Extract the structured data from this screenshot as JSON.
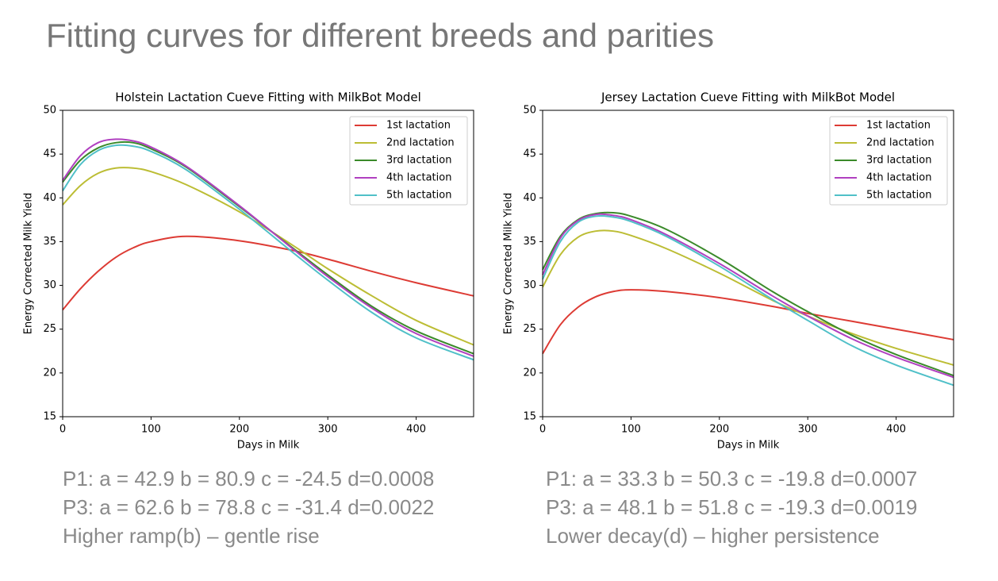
{
  "title": "Fitting curves for different breeds and parities",
  "chart_data": [
    {
      "type": "line",
      "title": "Holstein Lactation Cueve Fitting with MilkBot Model",
      "x_label": "Days in Milk",
      "y_label": "Energy Corrected Milk Yield",
      "x": [
        0,
        20,
        40,
        60,
        80,
        100,
        140,
        200,
        260,
        300,
        350,
        400,
        465
      ],
      "series": [
        {
          "name": "1st lactation",
          "color": "#dd3b34",
          "values": [
            27.2,
            29.6,
            31.6,
            33.2,
            34.3,
            35.0,
            35.6,
            35.1,
            34.0,
            33.0,
            31.6,
            30.3,
            28.8
          ]
        },
        {
          "name": "2nd lactation",
          "color": "#bcbd34",
          "values": [
            39.2,
            41.4,
            42.8,
            43.4,
            43.4,
            43.0,
            41.5,
            38.4,
            34.6,
            31.9,
            28.8,
            26.0,
            23.2
          ]
        },
        {
          "name": "3rd lactation",
          "color": "#3a8a2a",
          "values": [
            41.8,
            44.3,
            45.7,
            46.3,
            46.3,
            45.6,
            43.5,
            39.0,
            34.3,
            31.2,
            27.6,
            24.8,
            22.2
          ]
        },
        {
          "name": "4th lactation",
          "color": "#b040c0",
          "values": [
            42.0,
            44.8,
            46.3,
            46.7,
            46.5,
            45.8,
            43.6,
            39.1,
            34.2,
            31.0,
            27.4,
            24.5,
            21.9
          ]
        },
        {
          "name": "5th lactation",
          "color": "#50c0c8",
          "values": [
            40.8,
            43.8,
            45.4,
            46.0,
            45.9,
            45.3,
            43.2,
            38.7,
            33.8,
            30.6,
            26.9,
            24.0,
            21.5
          ]
        }
      ],
      "xlim": [
        0,
        465
      ],
      "ylim": [
        15,
        50
      ],
      "xticks": [
        0,
        100,
        200,
        300,
        400
      ],
      "yticks": [
        15,
        20,
        25,
        30,
        35,
        40,
        45,
        50
      ],
      "legend": "upper right",
      "grid": false
    },
    {
      "type": "line",
      "title": "Jersey Lactation Cueve Fitting with MilkBot Model",
      "x_label": "Days in Milk",
      "y_label": "Energy Corrected Milk Yield",
      "x": [
        0,
        20,
        40,
        60,
        80,
        100,
        140,
        200,
        260,
        300,
        350,
        400,
        465
      ],
      "series": [
        {
          "name": "1st lactation",
          "color": "#dd3b34",
          "values": [
            22.2,
            25.5,
            27.5,
            28.7,
            29.3,
            29.5,
            29.3,
            28.6,
            27.6,
            26.8,
            25.9,
            25.0,
            23.8
          ]
        },
        {
          "name": "2nd lactation",
          "color": "#bcbd34",
          "values": [
            29.8,
            33.5,
            35.5,
            36.2,
            36.2,
            35.7,
            34.2,
            31.4,
            28.3,
            26.5,
            24.5,
            22.8,
            20.9
          ]
        },
        {
          "name": "3rd lactation",
          "color": "#3a8a2a",
          "values": [
            31.8,
            35.6,
            37.5,
            38.2,
            38.3,
            37.9,
            36.4,
            33.1,
            29.3,
            27.0,
            24.3,
            22.1,
            19.7
          ]
        },
        {
          "name": "4th lactation",
          "color": "#b040c0",
          "values": [
            31.2,
            35.4,
            37.4,
            38.1,
            38.0,
            37.5,
            35.8,
            32.5,
            28.8,
            26.5,
            23.9,
            21.8,
            19.5
          ]
        },
        {
          "name": "5th lactation",
          "color": "#50c0c8",
          "values": [
            30.7,
            35.0,
            37.2,
            37.9,
            37.8,
            37.3,
            35.6,
            32.2,
            28.4,
            26.0,
            23.1,
            20.9,
            18.6
          ]
        }
      ],
      "xlim": [
        0,
        465
      ],
      "ylim": [
        15,
        50
      ],
      "xticks": [
        0,
        100,
        200,
        300,
        400
      ],
      "yticks": [
        15,
        20,
        25,
        30,
        35,
        40,
        45,
        50
      ],
      "legend": "upper right",
      "grid": false
    }
  ],
  "notes": [
    [
      "P1: a = 42.9 b = 80.9 c = -24.5 d=0.0008",
      "P3: a = 62.6 b = 78.8 c = -31.4 d=0.0022",
      "Higher ramp(b) – gentle rise"
    ],
    [
      "P1: a = 33.3 b = 50.3 c = -19.8 d=0.0007",
      "P3: a = 48.1 b = 51.8 c = -19.3 d=0.0019",
      "Lower decay(d) – higher persistence"
    ]
  ]
}
